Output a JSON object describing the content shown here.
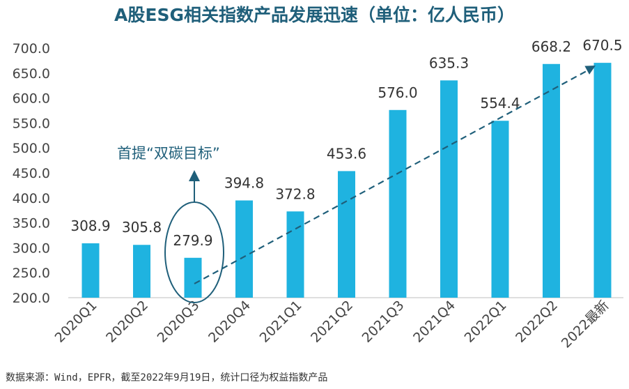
{
  "title": "A股ESG相关指数产品发展迅速（单位：亿人民币）",
  "source_note": "数据来源：Wind，EPFR，截至2022年9月19日，统计口径为权益指数产品",
  "annotation": "首提“双碳目标”",
  "colors": {
    "bar": "#1fb3e0",
    "title": "#1f5f7a",
    "trend": "#1f5f7a",
    "ellipse": "#1f5f7a",
    "annotation_text": "#1f5f7a",
    "axis_text": "#444444",
    "label_text": "#333333"
  },
  "chart_data": {
    "type": "bar",
    "categories": [
      "2020Q1",
      "2020Q2",
      "2020Q3",
      "2020Q4",
      "2021Q1",
      "2021Q2",
      "2021Q3",
      "2021Q4",
      "2022Q1",
      "2022Q2",
      "2022最新"
    ],
    "values": [
      308.9,
      305.8,
      279.9,
      394.8,
      372.8,
      453.6,
      576.0,
      635.3,
      554.4,
      668.2,
      670.5
    ],
    "value_labels": [
      "308.9",
      "305.8",
      "279.9",
      "394.8",
      "372.8",
      "453.6",
      "576.0",
      "635.3",
      "554.4",
      "668.2",
      "670.5"
    ],
    "ylim": [
      200,
      700
    ],
    "yticks": [
      "200.0",
      "250.0",
      "300.0",
      "350.0",
      "400.0",
      "450.0",
      "500.0",
      "550.0",
      "600.0",
      "650.0",
      "700.0"
    ],
    "trend_line": {
      "from_category": "2020Q3",
      "to_category": "2022最新",
      "style": "dashed-arrow",
      "from_value": 228,
      "to_value": 665
    },
    "highlight_category": "2020Q3",
    "grid": false,
    "xlabel": "",
    "ylabel": ""
  }
}
